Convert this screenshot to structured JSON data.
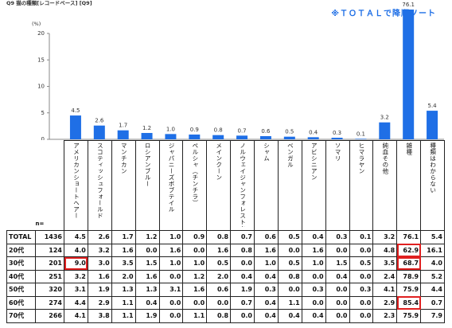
{
  "chart_data": {
    "type": "bar",
    "title": "Q9 猫の種類[レコードベース] [Q9]",
    "note": "※ＴＯＴＡＬで降順ソート",
    "ylabel": "(%)",
    "categories": [
      "アメリカンショートヘアー",
      "スコティッシュフォールド",
      "マンチカン",
      "ロシアンブルー",
      "ジャパニーズボブテイル",
      "ペルシャ（チンチラ）",
      "メインクーン",
      "ノルウェイジャンフォレストキャット",
      "シャム",
      "ベンガル",
      "アビシニアン",
      "ソマリ",
      "ヒマラヤン",
      "純血その他",
      "雑種",
      "種類はわからない"
    ],
    "values": [
      4.5,
      2.6,
      1.7,
      1.2,
      1.0,
      0.9,
      0.8,
      0.7,
      0.6,
      0.5,
      0.4,
      0.3,
      0.1,
      3.2,
      76.1,
      5.4
    ],
    "value_labels": [
      "4.5",
      "2.6",
      "1.7",
      "1.2",
      "1.0",
      "0.9",
      "0.8",
      "0.7",
      "0.6",
      "0.5",
      "0.4",
      "0.3",
      "0.1",
      "3.2",
      "76.1",
      "5.4"
    ],
    "color": "#1f6fe6",
    "ylim": [
      0,
      20
    ],
    "yticks": [
      0,
      5,
      10,
      15,
      20
    ]
  },
  "table": {
    "n_label": "n=",
    "rows": [
      {
        "label": "TOTAL",
        "n": "1436",
        "values": [
          "4.5",
          "2.6",
          "1.7",
          "1.2",
          "1.0",
          "0.9",
          "0.8",
          "0.7",
          "0.6",
          "0.5",
          "0.4",
          "0.3",
          "0.1",
          "3.2",
          "76.1",
          "5.4"
        ]
      },
      {
        "label": "20代",
        "n": "124",
        "values": [
          "4.0",
          "3.2",
          "1.6",
          "0.0",
          "1.6",
          "0.0",
          "1.6",
          "0.8",
          "1.6",
          "0.0",
          "1.6",
          "0.0",
          "0.0",
          "4.8",
          "62.9",
          "16.1"
        ]
      },
      {
        "label": "30代",
        "n": "201",
        "values": [
          "9.0",
          "3.0",
          "3.5",
          "1.5",
          "1.0",
          "1.0",
          "0.5",
          "0.0",
          "1.0",
          "0.5",
          "1.0",
          "1.5",
          "0.5",
          "3.5",
          "68.7",
          "4.0"
        ]
      },
      {
        "label": "40代",
        "n": "251",
        "values": [
          "3.2",
          "1.6",
          "2.0",
          "1.6",
          "0.0",
          "1.2",
          "2.0",
          "0.4",
          "0.4",
          "0.8",
          "0.0",
          "0.4",
          "0.0",
          "2.4",
          "78.9",
          "5.2"
        ]
      },
      {
        "label": "50代",
        "n": "320",
        "values": [
          "3.1",
          "1.9",
          "1.3",
          "1.3",
          "3.1",
          "1.6",
          "0.6",
          "1.9",
          "0.3",
          "0.0",
          "0.3",
          "0.0",
          "0.3",
          "4.1",
          "75.9",
          "4.4"
        ]
      },
      {
        "label": "60代",
        "n": "274",
        "values": [
          "4.4",
          "2.9",
          "1.1",
          "0.4",
          "0.0",
          "0.0",
          "0.0",
          "0.7",
          "0.4",
          "1.1",
          "0.0",
          "0.0",
          "0.0",
          "2.9",
          "85.4",
          "0.7"
        ]
      },
      {
        "label": "70代",
        "n": "266",
        "values": [
          "4.1",
          "3.8",
          "1.1",
          "1.9",
          "0.0",
          "1.1",
          "0.8",
          "0.0",
          "0.4",
          "0.4",
          "0.4",
          "0.0",
          "0.0",
          "2.3",
          "75.9",
          "7.9"
        ]
      }
    ],
    "highlight": [
      [
        1,
        14
      ],
      [
        2,
        0
      ],
      [
        2,
        14
      ],
      [
        5,
        14
      ]
    ]
  }
}
